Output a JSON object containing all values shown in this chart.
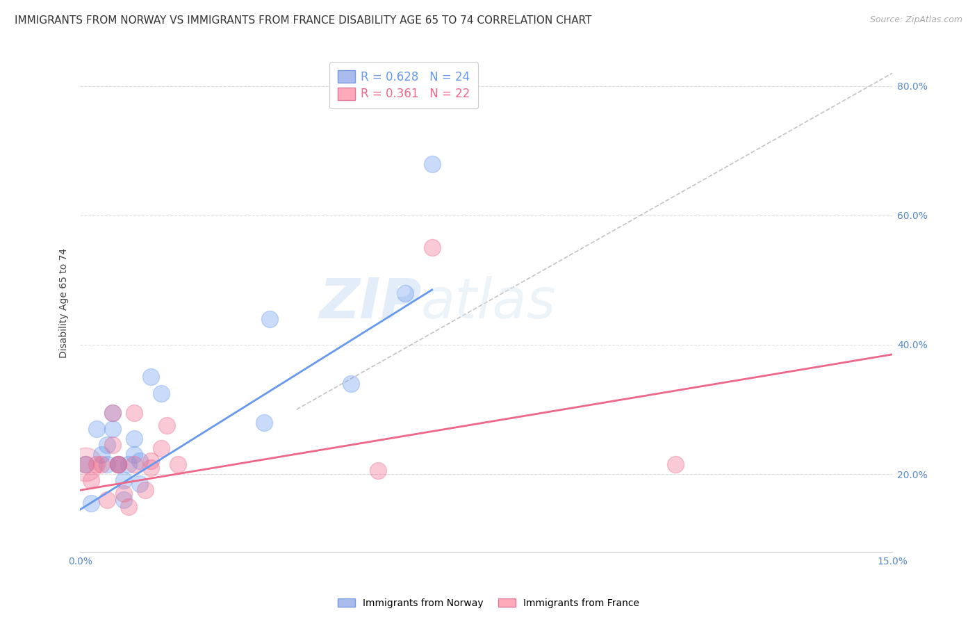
{
  "title": "IMMIGRANTS FROM NORWAY VS IMMIGRANTS FROM FRANCE DISABILITY AGE 65 TO 74 CORRELATION CHART",
  "source": "Source: ZipAtlas.com",
  "ylabel": "Disability Age 65 to 74",
  "xlim": [
    0.0,
    0.15
  ],
  "ylim": [
    0.08,
    0.85
  ],
  "x_ticks": [
    0.0,
    0.025,
    0.05,
    0.075,
    0.1,
    0.125,
    0.15
  ],
  "y_ticks": [
    0.2,
    0.4,
    0.6,
    0.8
  ],
  "norway_color": "#6699ee",
  "france_color": "#ee6688",
  "norway_R": 0.628,
  "norway_N": 24,
  "france_R": 0.361,
  "france_N": 22,
  "norway_scatter_x": [
    0.001,
    0.002,
    0.003,
    0.004,
    0.005,
    0.005,
    0.006,
    0.006,
    0.007,
    0.007,
    0.008,
    0.008,
    0.009,
    0.01,
    0.01,
    0.011,
    0.011,
    0.013,
    0.015,
    0.034,
    0.035,
    0.05,
    0.06,
    0.065
  ],
  "norway_scatter_y": [
    0.215,
    0.155,
    0.27,
    0.23,
    0.245,
    0.215,
    0.295,
    0.27,
    0.215,
    0.215,
    0.19,
    0.16,
    0.215,
    0.23,
    0.255,
    0.185,
    0.22,
    0.35,
    0.325,
    0.28,
    0.44,
    0.34,
    0.48,
    0.68
  ],
  "france_scatter_x": [
    0.001,
    0.002,
    0.003,
    0.004,
    0.005,
    0.006,
    0.006,
    0.007,
    0.007,
    0.008,
    0.009,
    0.01,
    0.01,
    0.012,
    0.013,
    0.013,
    0.015,
    0.016,
    0.018,
    0.055,
    0.065,
    0.11
  ],
  "france_scatter_y": [
    0.215,
    0.19,
    0.215,
    0.215,
    0.16,
    0.295,
    0.245,
    0.215,
    0.215,
    0.17,
    0.15,
    0.215,
    0.295,
    0.175,
    0.21,
    0.22,
    0.24,
    0.275,
    0.215,
    0.205,
    0.55,
    0.215
  ],
  "norway_line_x": [
    0.0,
    0.065
  ],
  "norway_line_y": [
    0.145,
    0.485
  ],
  "france_line_x": [
    0.0,
    0.15
  ],
  "france_line_y": [
    0.175,
    0.385
  ],
  "dashed_line_x": [
    0.04,
    0.15
  ],
  "dashed_line_y": [
    0.3,
    0.82
  ],
  "watermark_zip": "ZIP",
  "watermark_atlas": "atlas",
  "background_color": "#ffffff",
  "grid_color": "#dddddd",
  "title_fontsize": 11,
  "axis_label_fontsize": 10,
  "tick_fontsize": 10,
  "legend_fontsize": 12
}
